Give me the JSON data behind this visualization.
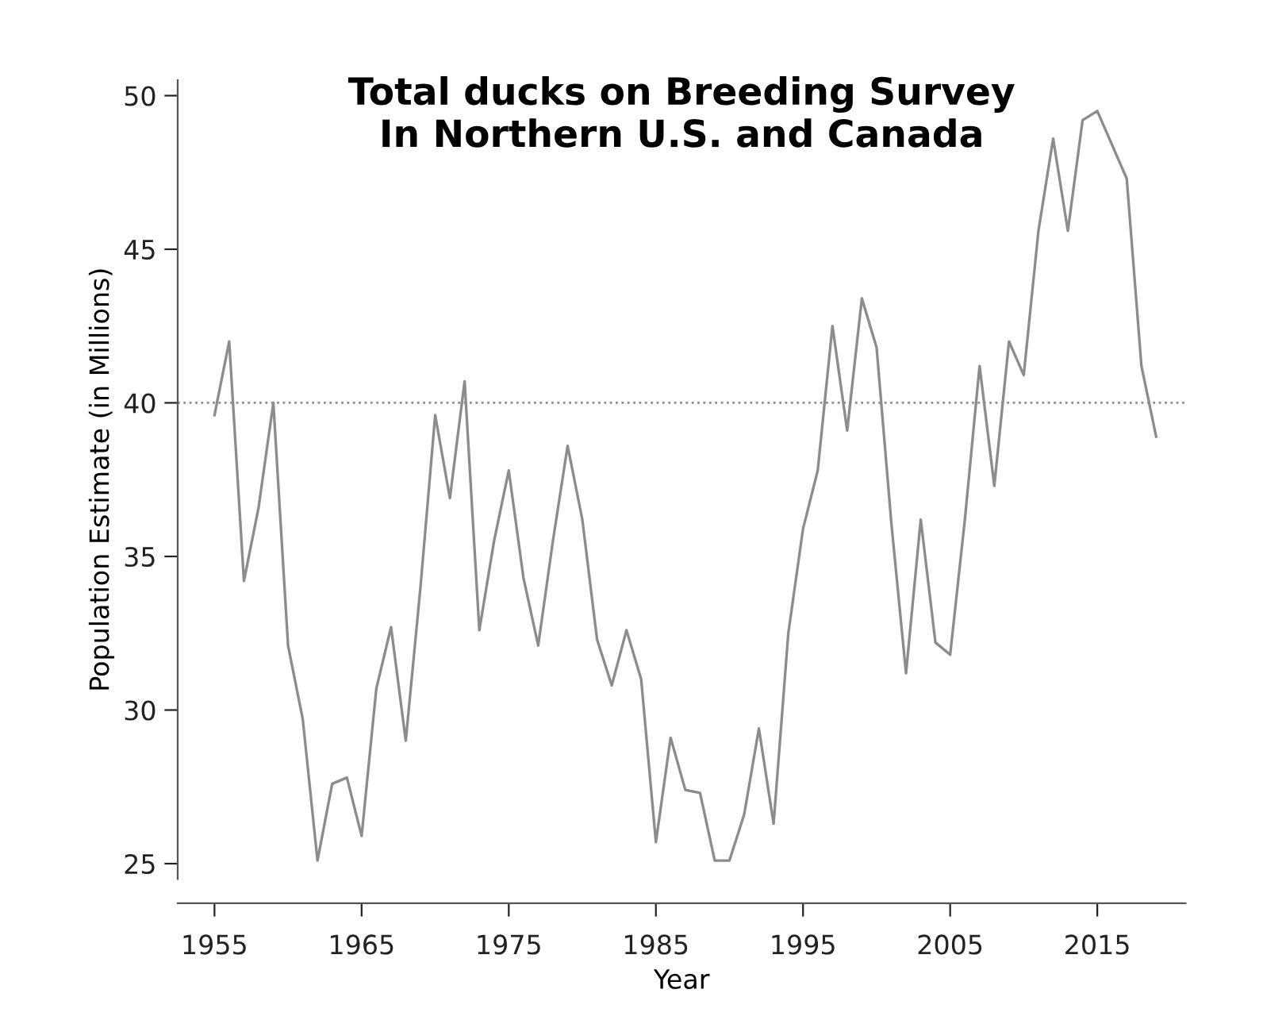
{
  "chart_data": {
    "type": "line",
    "title": "Total ducks on Breeding Survey\nIn Northern U.S. and Canada",
    "xlabel": "Year",
    "ylabel": "Population Estimate (in Millions)",
    "x": [
      1955,
      1956,
      1957,
      1958,
      1959,
      1960,
      1961,
      1962,
      1963,
      1964,
      1965,
      1966,
      1967,
      1968,
      1969,
      1970,
      1971,
      1972,
      1973,
      1974,
      1975,
      1976,
      1977,
      1978,
      1979,
      1980,
      1981,
      1982,
      1983,
      1984,
      1985,
      1986,
      1987,
      1988,
      1989,
      1990,
      1991,
      1992,
      1993,
      1994,
      1995,
      1996,
      1997,
      1998,
      1999,
      2000,
      2001,
      2002,
      2003,
      2004,
      2005,
      2006,
      2007,
      2008,
      2009,
      2010,
      2011,
      2012,
      2013,
      2014,
      2015,
      2016,
      2017,
      2018,
      2019
    ],
    "series": [
      {
        "color": "#8c8c8c",
        "values": [
          39.6,
          42.0,
          34.2,
          36.6,
          40.0,
          32.1,
          29.7,
          25.1,
          27.6,
          27.8,
          25.9,
          30.7,
          32.7,
          29.0,
          34.0,
          39.6,
          36.9,
          40.7,
          32.6,
          35.5,
          37.8,
          34.3,
          32.1,
          35.5,
          38.6,
          36.2,
          32.3,
          30.8,
          32.6,
          31.0,
          25.7,
          29.1,
          27.4,
          27.3,
          25.1,
          25.1,
          26.6,
          29.4,
          26.3,
          32.5,
          35.9,
          37.8,
          42.5,
          39.1,
          43.4,
          41.8,
          36.1,
          31.2,
          36.2,
          32.2,
          31.8,
          36.2,
          41.2,
          37.3,
          42.0,
          40.9,
          45.6,
          48.6,
          45.6,
          49.2,
          49.5,
          48.4,
          47.3,
          41.2,
          38.9
        ]
      }
    ],
    "xlim": [
      1952.5,
      2021
    ],
    "ylim": [
      24.5,
      50.5
    ],
    "xticks": [
      1955,
      1965,
      1975,
      1985,
      1995,
      2005,
      2015
    ],
    "yticks": [
      25,
      30,
      35,
      40,
      45,
      50
    ],
    "ref_lines": [
      {
        "axis": "y",
        "value": 40,
        "color": "#8c8c8c",
        "line_style": "dotted"
      }
    ],
    "grid": false,
    "legend": false,
    "marker": "none",
    "line_style": "solid"
  }
}
